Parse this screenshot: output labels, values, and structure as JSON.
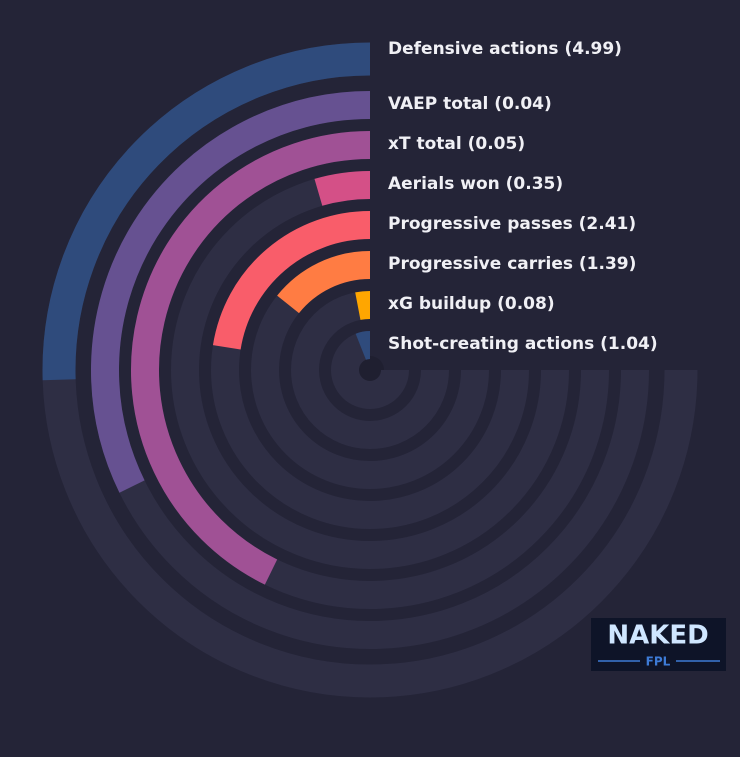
{
  "chart_data": {
    "type": "radial-bar",
    "categories": [
      "Defensive actions (4.99)",
      "VAEP total (0.04)",
      "xT total (0.05)",
      "Aerials won (0.35)",
      "Progressive passes (2.41)",
      "Progressive carries (1.39)",
      "xG buildup (0.08)",
      "Shot-creating actions (1.04)"
    ],
    "values": [
      34,
      43,
      57,
      6,
      30,
      19,
      4,
      8
    ],
    "colors": [
      "#2f4b7c",
      "#665191",
      "#a05195",
      "#d45087",
      "#f95d6a",
      "#ff7c43",
      "#ffa600",
      "#2f4b7c"
    ],
    "ylim": [
      0,
      100
    ]
  },
  "logo": {
    "top": "NAKED",
    "bottom": "FPL"
  }
}
